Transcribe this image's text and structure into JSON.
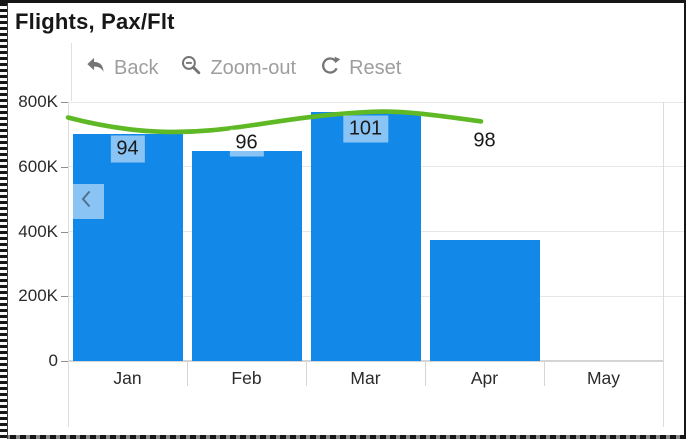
{
  "title": "Flights, Pax/Flt",
  "toolbar": {
    "back_label": "Back",
    "zoom_out_label": "Zoom-out",
    "reset_label": "Reset"
  },
  "pager": {
    "prev_icon": "chevron-left"
  },
  "colors": {
    "bar": "#1289E8",
    "line": "#5EB924",
    "label_background": "rgba(255,255,255,0.5)"
  },
  "chart_data": {
    "type": "bar",
    "subtype": "column-with-line-combo",
    "title": "Flights, Pax/Flt",
    "categories": [
      "Jan",
      "Feb",
      "Mar",
      "Apr",
      "May"
    ],
    "series": [
      {
        "name": "Flights",
        "type": "bar",
        "values": [
          700000,
          650000,
          770000,
          375000,
          null
        ]
      },
      {
        "name": "Pax/Flt",
        "type": "line",
        "values": [
          94,
          96,
          101,
          98,
          null
        ],
        "labels": [
          "94",
          "96",
          "101",
          "98"
        ]
      }
    ],
    "xlabel": "",
    "ylabel": "",
    "ylim": [
      0,
      800000
    ],
    "y_ticks": [
      {
        "label": "800K",
        "value": 800000
      },
      {
        "label": "600K",
        "value": 600000
      },
      {
        "label": "400K",
        "value": 400000
      },
      {
        "label": "200K",
        "value": 200000
      },
      {
        "label": "0",
        "value": 0
      }
    ],
    "grid": "horizontal",
    "legend": "none"
  }
}
